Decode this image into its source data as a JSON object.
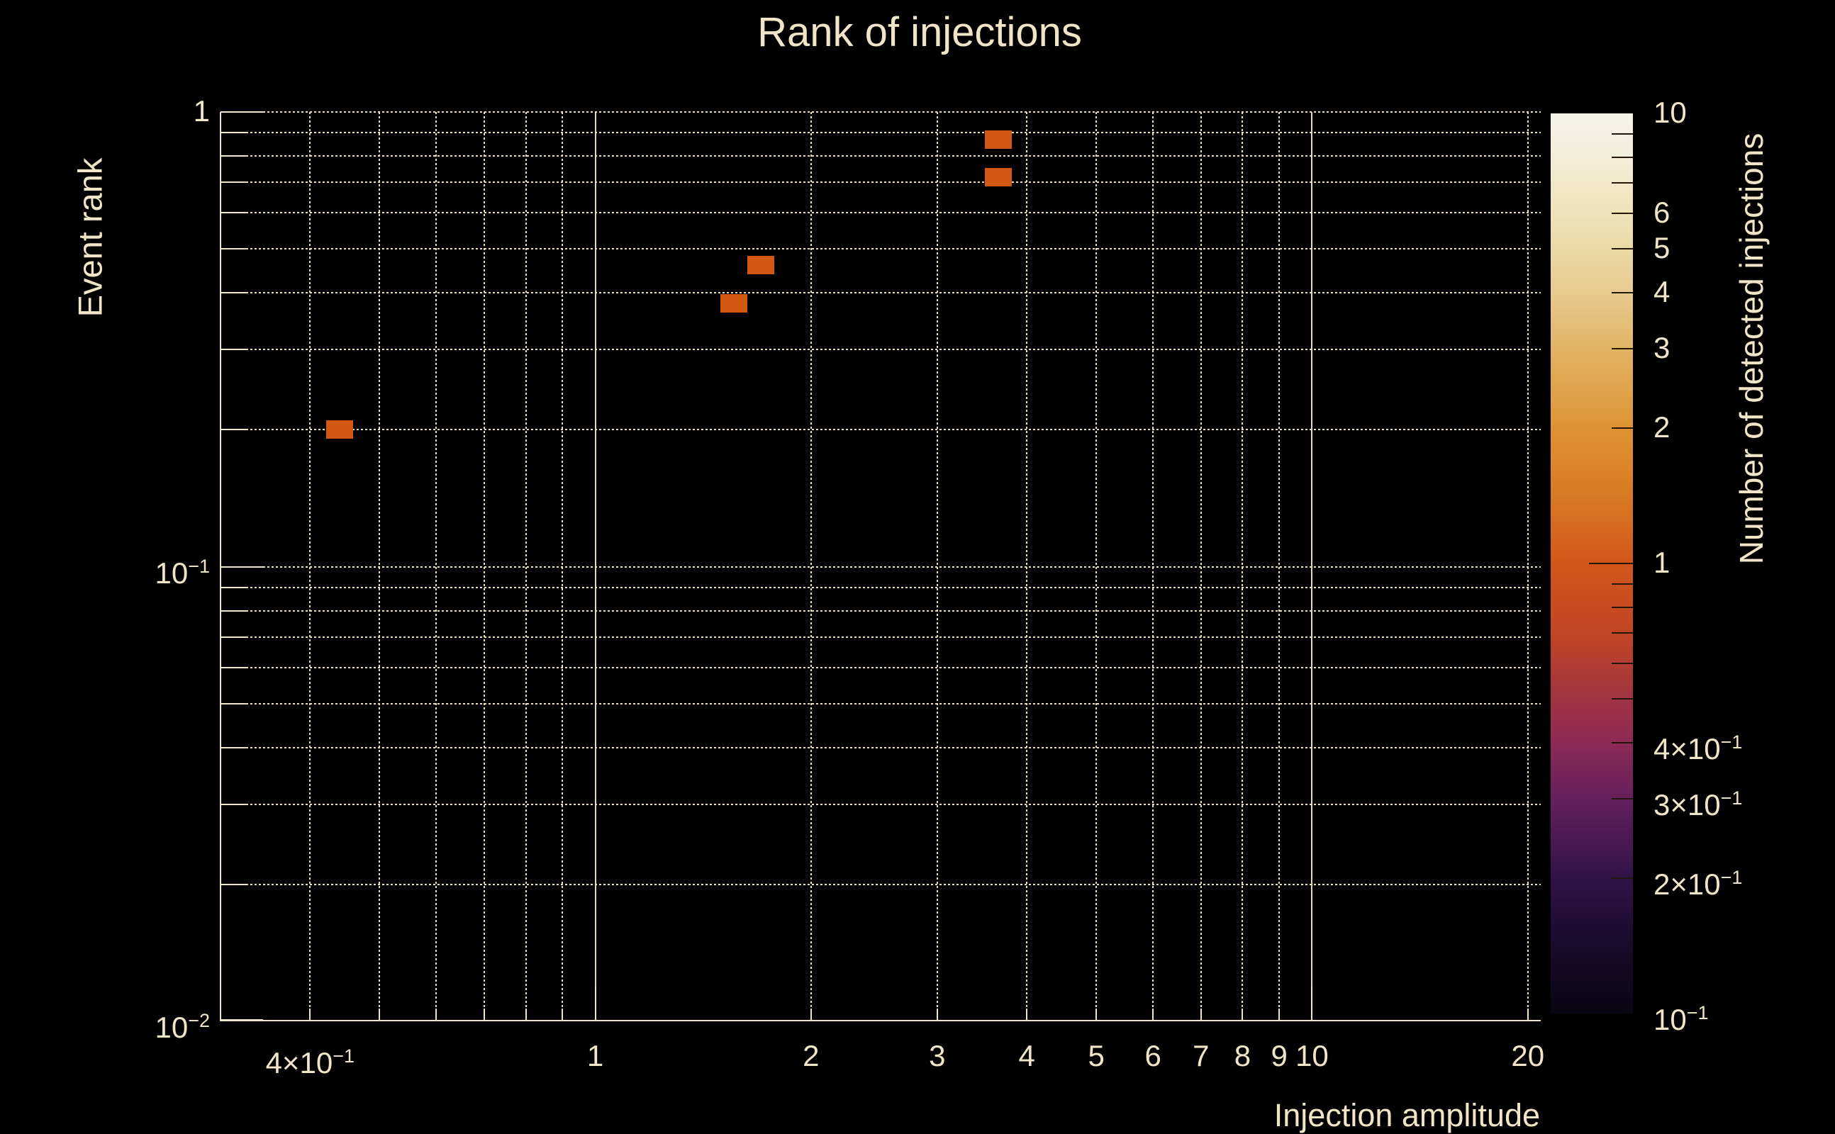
{
  "colors": {
    "background": "#000000",
    "text": "#f0e5c7",
    "grid": "#e9deb0",
    "axis": "#f0e5c7",
    "bin_fill": "#d25812",
    "colorbar_tick": "#241608"
  },
  "chart_data": {
    "type": "heatmap",
    "title": "Rank of injections",
    "xlabel": "Injection amplitude",
    "ylabel": "Event rank",
    "x_scale": "log",
    "y_scale": "log",
    "xlim": [
      0.3,
      20.85
    ],
    "ylim": [
      0.01,
      1.0
    ],
    "grid": "dotted",
    "x_ticks": [
      {
        "v": 0.4,
        "label": "4×10^−1"
      },
      {
        "v": 1,
        "label": "1"
      },
      {
        "v": 2,
        "label": "2"
      },
      {
        "v": 3,
        "label": "3"
      },
      {
        "v": 4,
        "label": "4"
      },
      {
        "v": 5,
        "label": "5"
      },
      {
        "v": 6,
        "label": "6"
      },
      {
        "v": 7,
        "label": "7"
      },
      {
        "v": 8,
        "label": "8"
      },
      {
        "v": 9,
        "label": "9"
      },
      {
        "v": 10,
        "label": "10"
      },
      {
        "v": 20,
        "label": "20"
      }
    ],
    "x_major": [
      1,
      10
    ],
    "x_minor": [
      0.4,
      0.5,
      0.6,
      0.7,
      0.8,
      0.9,
      2,
      3,
      4,
      5,
      6,
      7,
      8,
      9,
      20
    ],
    "y_ticks": [
      {
        "v": 1,
        "label": "1"
      },
      {
        "v": 0.1,
        "label": "10^−1"
      },
      {
        "v": 0.01,
        "label": "10^−2"
      }
    ],
    "y_major": [
      1,
      0.1,
      0.01
    ],
    "y_minor": [
      0.9,
      0.8,
      0.7,
      0.6,
      0.5,
      0.4,
      0.3,
      0.2,
      0.09,
      0.08,
      0.07,
      0.06,
      0.05,
      0.04,
      0.03,
      0.02
    ],
    "points": [
      {
        "x": 0.44,
        "y": 0.2,
        "count": 1
      },
      {
        "x": 1.56,
        "y": 0.38,
        "count": 1
      },
      {
        "x": 1.7,
        "y": 0.46,
        "count": 1
      },
      {
        "x": 3.65,
        "y": 0.72,
        "count": 1
      },
      {
        "x": 3.65,
        "y": 0.87,
        "count": 1
      }
    ],
    "colorbar": {
      "label": "Number of detected injections",
      "scale": "log",
      "clim": [
        0.1,
        10
      ],
      "ticks": [
        {
          "v": 10,
          "label": "10"
        },
        {
          "v": 6,
          "label": "6"
        },
        {
          "v": 5,
          "label": "5"
        },
        {
          "v": 4,
          "label": "4"
        },
        {
          "v": 3,
          "label": "3"
        },
        {
          "v": 2,
          "label": "2"
        },
        {
          "v": 1,
          "label": "1"
        },
        {
          "v": 0.4,
          "label": "4×10^−1"
        },
        {
          "v": 0.3,
          "label": "3×10^−1"
        },
        {
          "v": 0.2,
          "label": "2×10^−1"
        },
        {
          "v": 0.1,
          "label": "10^−1"
        }
      ],
      "minor_ticks": [
        9,
        8,
        7,
        0.9,
        0.8,
        0.7,
        0.6,
        0.5
      ],
      "gradient": [
        [
          0.0,
          "#0a0512"
        ],
        [
          0.09,
          "#1b0c30"
        ],
        [
          0.15,
          "#311347"
        ],
        [
          0.24,
          "#66205d"
        ],
        [
          0.3,
          "#8d2a55"
        ],
        [
          0.35,
          "#a23342"
        ],
        [
          0.42,
          "#c04524"
        ],
        [
          0.5,
          "#d2571a"
        ],
        [
          0.57,
          "#d97722"
        ],
        [
          0.65,
          "#de9333"
        ],
        [
          0.74,
          "#e2b364"
        ],
        [
          0.8,
          "#e7ca8e"
        ],
        [
          0.85,
          "#ebd9a6"
        ],
        [
          0.89,
          "#eee3b8"
        ],
        [
          0.95,
          "#f3edd8"
        ],
        [
          1.0,
          "#f6f3ea"
        ]
      ]
    }
  }
}
